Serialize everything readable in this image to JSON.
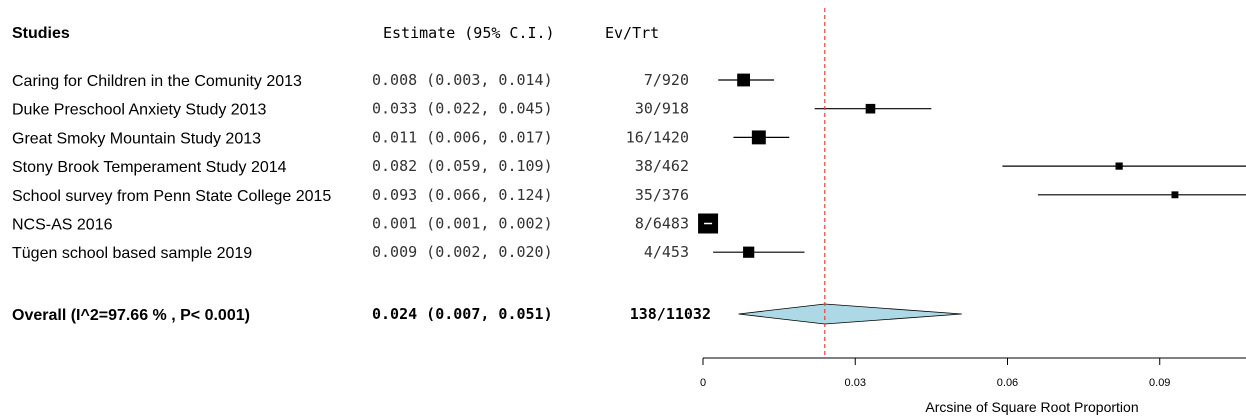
{
  "chart_data": {
    "type": "forest",
    "headers": {
      "studies": "Studies",
      "estimate": "Estimate (95% C.I.)",
      "events": "Ev/Trt"
    },
    "studies": [
      {
        "name": "Caring for Children in the Comunity  2013",
        "estimate": 0.008,
        "lower": 0.003,
        "upper": 0.014,
        "estimate_text": "0.008 (0.003, 0.014)",
        "events": "7/920",
        "weight": 0.55
      },
      {
        "name": "Duke Preschool Anxiety Study 2013",
        "estimate": 0.033,
        "lower": 0.022,
        "upper": 0.045,
        "estimate_text": "0.033 (0.022, 0.045)",
        "events": "30/918",
        "weight": 0.35
      },
      {
        "name": "Great Smoky Mountain Study 2013",
        "estimate": 0.011,
        "lower": 0.006,
        "upper": 0.017,
        "estimate_text": "0.011 (0.006, 0.017)",
        "events": "16/1420",
        "weight": 0.62
      },
      {
        "name": "Stony Brook Temperament Study 2014",
        "estimate": 0.082,
        "lower": 0.059,
        "upper": 0.109,
        "estimate_text": "0.082 (0.059, 0.109)",
        "events": "38/462",
        "weight": 0.2
      },
      {
        "name": "School survey from Penn State College  2015",
        "estimate": 0.093,
        "lower": 0.066,
        "upper": 0.124,
        "estimate_text": "0.093 (0.066, 0.124)",
        "events": "35/376",
        "weight": 0.18
      },
      {
        "name": "NCS-AS 2016",
        "estimate": 0.001,
        "lower": 0.001,
        "upper": 0.002,
        "estimate_text": "0.001 (0.001, 0.002)",
        "events": "8/6483",
        "weight": 1.0
      },
      {
        "name": "Tügen school based sample 2019",
        "estimate": 0.009,
        "lower": 0.002,
        "upper": 0.02,
        "estimate_text": "0.009 (0.002, 0.020)",
        "events": "4/453",
        "weight": 0.45
      }
    ],
    "overall": {
      "label": "Overall (I^2=97.66 % , P< 0.001)",
      "estimate": 0.024,
      "lower": 0.007,
      "upper": 0.051,
      "estimate_text": "0.024 (0.007, 0.051)",
      "events": "138/11032"
    },
    "x_axis": {
      "label": "Arcsine of Square Root Proportion",
      "ticks": [
        0,
        0.03,
        0.06,
        0.09
      ],
      "tick_labels": [
        "0",
        "0.03",
        "0.06",
        "0.09"
      ],
      "range": [
        0,
        0.107
      ]
    },
    "reference_line": 0.024,
    "colors": {
      "diamond_fill": "#add8e6",
      "reference_line": "#e8413c",
      "marks": "#000000"
    }
  }
}
